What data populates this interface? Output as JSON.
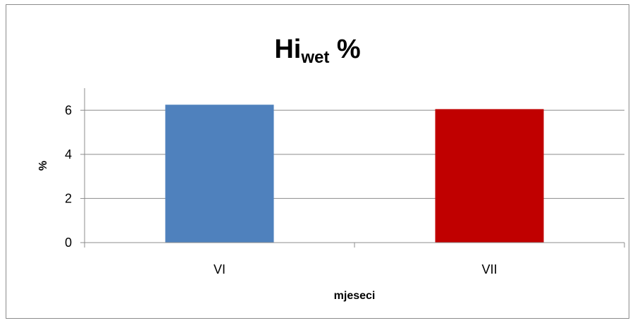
{
  "chart_data": {
    "type": "bar",
    "title": {
      "main": "Hi",
      "subscript": "wet",
      "suffix": " %"
    },
    "categories": [
      "VI",
      "VII"
    ],
    "values": [
      6.25,
      6.05
    ],
    "bar_colors": [
      "#4f81bd",
      "#c00000"
    ],
    "xlabel": "mjeseci",
    "ylabel": "%",
    "ylim": [
      0,
      7
    ],
    "yticks": [
      "0",
      "2",
      "4",
      "6"
    ],
    "grid": true,
    "legend": "none"
  }
}
